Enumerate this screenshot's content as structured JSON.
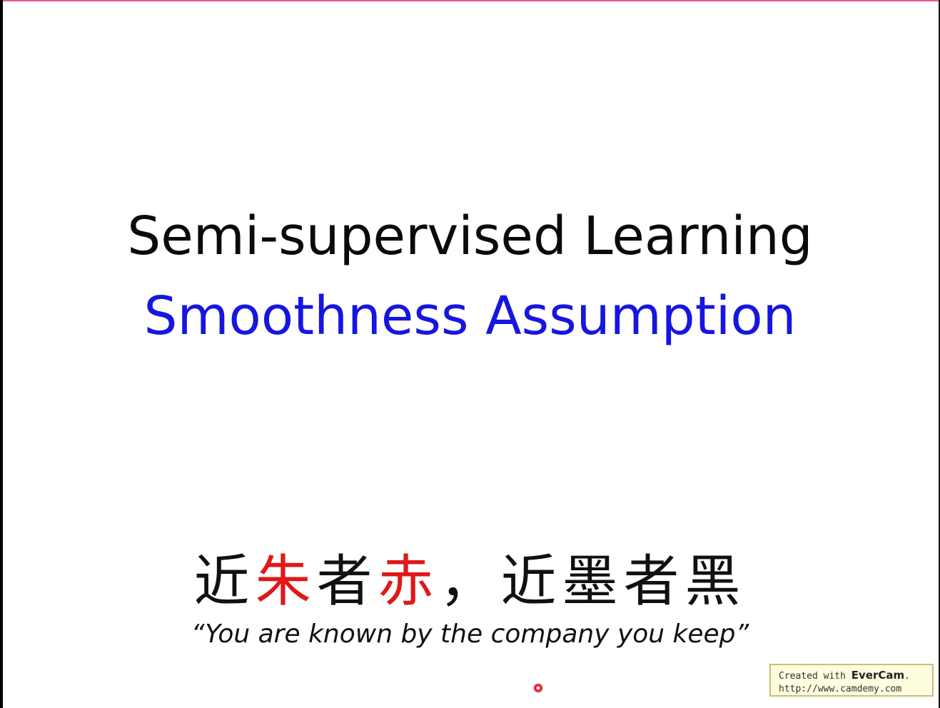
{
  "slide": {
    "title": "Semi-supervised Learning",
    "subtitle": "Smoothness Assumption",
    "proverb": {
      "part1": "近",
      "part2": "朱",
      "part3": "者",
      "part4": "赤",
      "part5": "，近墨者黑"
    },
    "quote": "“You are known by the company you keep”"
  },
  "watermark": {
    "line1_prefix": "Created with ",
    "line1_brand": "EverCam",
    "line1_suffix": ".",
    "line2": "http://www.camdemy.com"
  },
  "colors": {
    "title": "#0a0a0a",
    "subtitle": "#1616e0",
    "highlight": "#e01818"
  }
}
